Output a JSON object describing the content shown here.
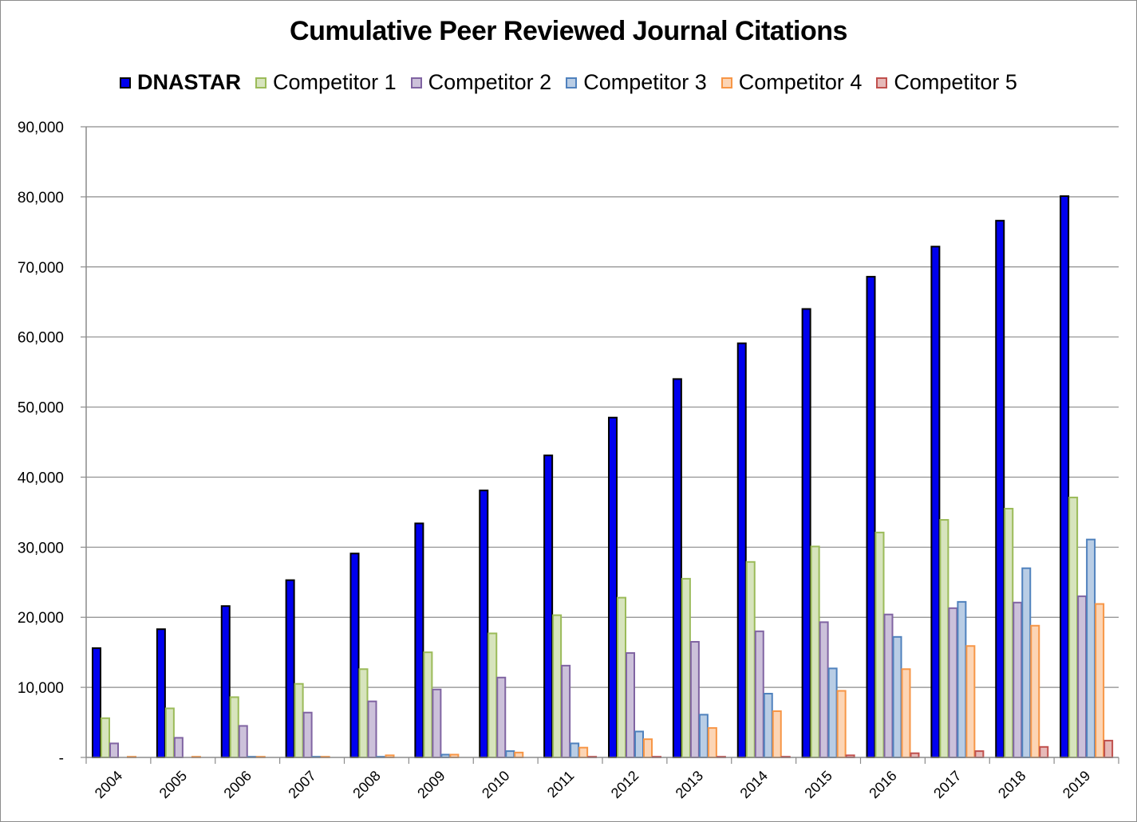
{
  "chart_data": {
    "type": "bar",
    "title": "Cumulative Peer Reviewed Journal Citations",
    "xlabel": "",
    "ylabel": "",
    "ylim": [
      0,
      90000
    ],
    "yticks": [
      {
        "value": 0,
        "label": "-"
      },
      {
        "value": 10000,
        "label": "10,000"
      },
      {
        "value": 20000,
        "label": "20,000"
      },
      {
        "value": 30000,
        "label": "30,000"
      },
      {
        "value": 40000,
        "label": "40,000"
      },
      {
        "value": 50000,
        "label": "50,000"
      },
      {
        "value": 60000,
        "label": "60,000"
      },
      {
        "value": 70000,
        "label": "70,000"
      },
      {
        "value": 80000,
        "label": "80,000"
      },
      {
        "value": 90000,
        "label": "90,000"
      }
    ],
    "grid": true,
    "legend_position": "top",
    "categories": [
      "2004",
      "2005",
      "2006",
      "2007",
      "2008",
      "2009",
      "2010",
      "2011",
      "2012",
      "2013",
      "2014",
      "2015",
      "2016",
      "2017",
      "2018",
      "2019"
    ],
    "series": [
      {
        "name": "DNASTAR",
        "fill": "#0000ee",
        "stroke": "#000000",
        "bold": true,
        "values": [
          15600,
          18300,
          21600,
          25300,
          29100,
          33400,
          38100,
          43100,
          48500,
          54000,
          59100,
          64000,
          68600,
          72900,
          76600,
          80100
        ]
      },
      {
        "name": "Competitor 1",
        "fill": "#d7e4bd",
        "stroke": "#9bbb59",
        "bold": false,
        "values": [
          5600,
          7000,
          8600,
          10500,
          12600,
          15000,
          17700,
          20300,
          22800,
          25500,
          27900,
          30100,
          32100,
          33900,
          35500,
          37100
        ]
      },
      {
        "name": "Competitor 2",
        "fill": "#ccc1da",
        "stroke": "#8064a2",
        "bold": false,
        "values": [
          2000,
          2800,
          4500,
          6400,
          8000,
          9700,
          11400,
          13100,
          14900,
          16500,
          18000,
          19300,
          20400,
          21300,
          22100,
          23000
        ]
      },
      {
        "name": "Competitor 3",
        "fill": "#b9cde5",
        "stroke": "#4f81bd",
        "bold": false,
        "values": [
          0,
          0,
          100,
          100,
          100,
          400,
          900,
          2000,
          3700,
          6100,
          9100,
          12700,
          17200,
          22200,
          27000,
          31100
        ]
      },
      {
        "name": "Competitor 4",
        "fill": "#fcd5b5",
        "stroke": "#f79646",
        "bold": false,
        "values": [
          100,
          100,
          100,
          100,
          300,
          400,
          700,
          1400,
          2600,
          4200,
          6600,
          9500,
          12600,
          15900,
          18800,
          21900
        ]
      },
      {
        "name": "Competitor 5",
        "fill": "#e6b9b8",
        "stroke": "#c0504d",
        "bold": false,
        "values": [
          0,
          0,
          0,
          0,
          0,
          0,
          0,
          100,
          100,
          100,
          100,
          300,
          600,
          900,
          1500,
          2400
        ]
      }
    ]
  }
}
